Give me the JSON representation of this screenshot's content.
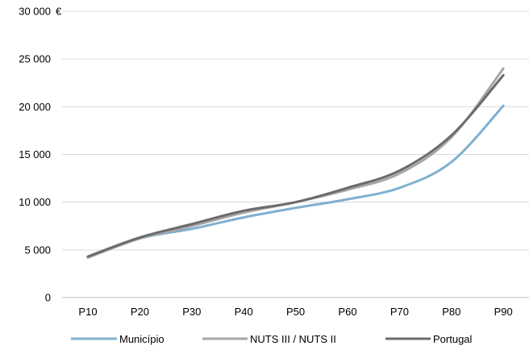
{
  "chart_data": {
    "type": "line",
    "unit": "€",
    "categories": [
      "P10",
      "P20",
      "P30",
      "P40",
      "P50",
      "P60",
      "P70",
      "P80",
      "P90"
    ],
    "ylim": [
      0,
      30000
    ],
    "yticks": [
      0,
      5000,
      10000,
      15000,
      20000,
      25000,
      30000
    ],
    "ytick_labels": [
      "0",
      "5 000",
      "10 000",
      "15 000",
      "20 000",
      "25 000",
      "30 000"
    ],
    "grid": true,
    "legend_position": "bottom",
    "series": [
      {
        "name": "Município",
        "color": "#7fb0d0",
        "values": [
          4200,
          6200,
          7200,
          8400,
          9400,
          10300,
          11500,
          14200,
          20100
        ]
      },
      {
        "name": "NUTS III / NUTS II",
        "color": "#a6a6a6",
        "values": [
          4200,
          6200,
          7500,
          8900,
          10000,
          11300,
          13000,
          16800,
          24000
        ]
      },
      {
        "name": "Portugal",
        "color": "#6b6b6b",
        "values": [
          4300,
          6300,
          7700,
          9100,
          10000,
          11500,
          13300,
          17000,
          23300
        ]
      }
    ]
  }
}
